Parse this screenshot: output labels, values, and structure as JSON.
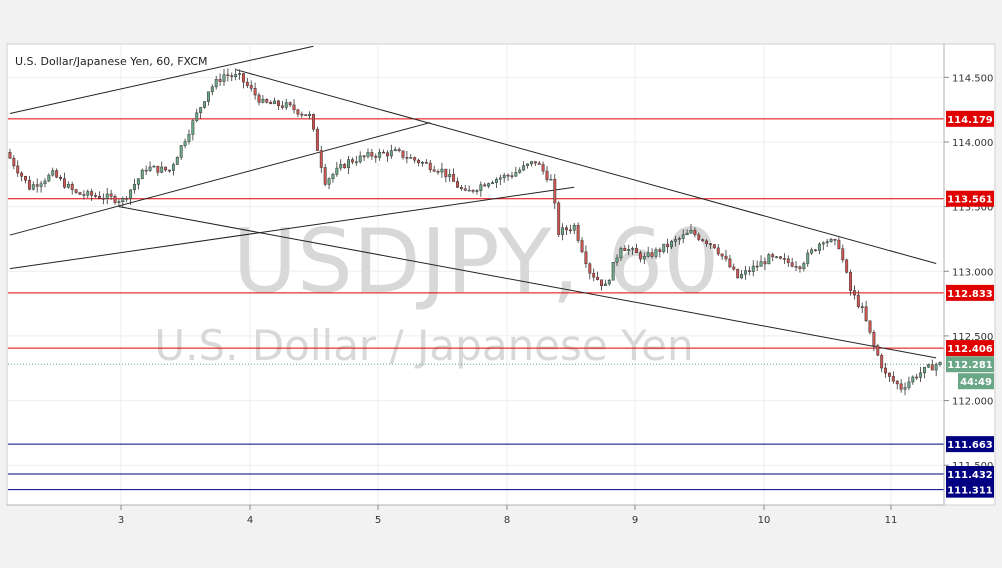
{
  "chart_data": {
    "type": "candlestick",
    "title": "U.S. Dollar/Japanese Yen, 60, FXCM",
    "watermark": {
      "symbol": "USDJPY, 60",
      "name": "U.S. Dollar / Japanese Yen"
    },
    "x_tick_labels": [
      "3",
      "4",
      "5",
      "8",
      "9",
      "10",
      "11"
    ],
    "y_ticks": [
      {
        "value": 114.5,
        "label": "114.500"
      },
      {
        "value": 114.0,
        "label": "114.000"
      },
      {
        "value": 113.5,
        "label": "113.500"
      },
      {
        "value": 113.0,
        "label": "113.000"
      },
      {
        "value": 112.5,
        "label": "112.500"
      },
      {
        "value": 112.0,
        "label": "112.000"
      },
      {
        "value": 111.5,
        "label": "111.500"
      }
    ],
    "ylim": [
      111.2,
      114.75
    ],
    "bar_count": 240,
    "colors": {
      "up": "#6aa786",
      "down": "#d05450",
      "resistance": "#e00000",
      "support": "#000080",
      "trend": "#222222"
    },
    "resistance_levels": [
      {
        "value": 114.179,
        "label": "114.179"
      },
      {
        "value": 113.561,
        "label": "113.561"
      },
      {
        "value": 112.833,
        "label": "112.833"
      },
      {
        "value": 112.406,
        "label": "112.406"
      }
    ],
    "support_levels": [
      {
        "value": 111.663,
        "label": "111.663"
      },
      {
        "value": 111.432,
        "label": "111.432"
      },
      {
        "value": 111.311,
        "label": "111.311"
      }
    ],
    "current_price": {
      "value": 112.281,
      "label": "112.281",
      "countdown": "44:49"
    },
    "trend_lines": [
      {
        "x1": 0,
        "y1": 114.22,
        "x2": 78,
        "y2": 114.74
      },
      {
        "x1": 0,
        "y1": 113.28,
        "x2": 108,
        "y2": 114.15
      },
      {
        "x1": 0,
        "y1": 113.02,
        "x2": 145,
        "y2": 113.65
      },
      {
        "x1": 28,
        "y1": 113.5,
        "x2": 238,
        "y2": 112.33
      },
      {
        "x1": 58,
        "y1": 114.56,
        "x2": 238,
        "y2": 113.06
      }
    ],
    "price_path": [
      {
        "i": 0,
        "p": 113.92
      },
      {
        "i": 6,
        "p": 113.65
      },
      {
        "i": 12,
        "p": 113.75
      },
      {
        "i": 18,
        "p": 113.6
      },
      {
        "i": 24,
        "p": 113.58
      },
      {
        "i": 30,
        "p": 113.55
      },
      {
        "i": 36,
        "p": 113.8
      },
      {
        "i": 42,
        "p": 113.78
      },
      {
        "i": 48,
        "p": 114.15
      },
      {
        "i": 52,
        "p": 114.4
      },
      {
        "i": 56,
        "p": 114.52
      },
      {
        "i": 60,
        "p": 114.5
      },
      {
        "i": 66,
        "p": 114.3
      },
      {
        "i": 72,
        "p": 114.28
      },
      {
        "i": 78,
        "p": 114.2
      },
      {
        "i": 82,
        "p": 113.7
      },
      {
        "i": 88,
        "p": 113.85
      },
      {
        "i": 94,
        "p": 113.9
      },
      {
        "i": 100,
        "p": 113.92
      },
      {
        "i": 106,
        "p": 113.85
      },
      {
        "i": 112,
        "p": 113.78
      },
      {
        "i": 118,
        "p": 113.6
      },
      {
        "i": 124,
        "p": 113.7
      },
      {
        "i": 130,
        "p": 113.75
      },
      {
        "i": 136,
        "p": 113.85
      },
      {
        "i": 140,
        "p": 113.7
      },
      {
        "i": 142,
        "p": 113.3
      },
      {
        "i": 146,
        "p": 113.35
      },
      {
        "i": 150,
        "p": 113.0
      },
      {
        "i": 154,
        "p": 112.88
      },
      {
        "i": 158,
        "p": 113.2
      },
      {
        "i": 164,
        "p": 113.1
      },
      {
        "i": 170,
        "p": 113.2
      },
      {
        "i": 176,
        "p": 113.3
      },
      {
        "i": 182,
        "p": 113.2
      },
      {
        "i": 188,
        "p": 112.95
      },
      {
        "i": 196,
        "p": 113.1
      },
      {
        "i": 204,
        "p": 113.05
      },
      {
        "i": 210,
        "p": 113.25
      },
      {
        "i": 214,
        "p": 113.2
      },
      {
        "i": 217,
        "p": 112.85
      },
      {
        "i": 220,
        "p": 112.7
      },
      {
        "i": 223,
        "p": 112.42
      },
      {
        "i": 226,
        "p": 112.2
      },
      {
        "i": 230,
        "p": 112.1
      },
      {
        "i": 234,
        "p": 112.2
      },
      {
        "i": 239,
        "p": 112.281
      }
    ]
  }
}
